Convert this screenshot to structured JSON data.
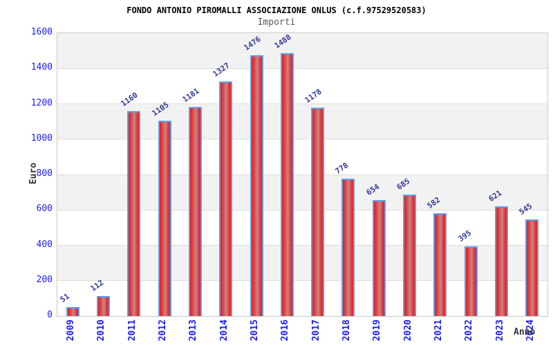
{
  "chart_data": {
    "type": "bar",
    "title": "FONDO ANTONIO PIROMALLI ASSOCIAZIONE ONLUS (c.f.97529520583)",
    "subtitle": "Importi",
    "xlabel": "Anno",
    "ylabel": "Euro",
    "categories": [
      "2009",
      "2010",
      "2011",
      "2012",
      "2013",
      "2014",
      "2015",
      "2016",
      "2017",
      "2018",
      "2019",
      "2020",
      "2021",
      "2022",
      "2023",
      "2024"
    ],
    "values": [
      51,
      112,
      1160,
      1105,
      1181,
      1327,
      1476,
      1488,
      1178,
      778,
      654,
      685,
      582,
      395,
      621,
      545
    ],
    "ylim": [
      0,
      1600
    ],
    "ytick_step": 200,
    "yticks": [
      0,
      200,
      400,
      600,
      800,
      1000,
      1200,
      1400,
      1600
    ],
    "grid": "horizontal-alternating-bands",
    "legend_position": "none",
    "colors": {
      "bar_red": "#ed1c1c",
      "bar_red_mid": "#da4040",
      "bar_light_center": "#cb8585",
      "bar_border_blue": "#5b9ff2",
      "axis_tick_blue": "#1a1aff",
      "value_label_navy": "#333a99",
      "band_gray": "#f2f2f2",
      "band_white": "#ffffff",
      "gridline_gray": "#dcdcdc",
      "plot_border_gray": "#c9c9c9"
    }
  }
}
